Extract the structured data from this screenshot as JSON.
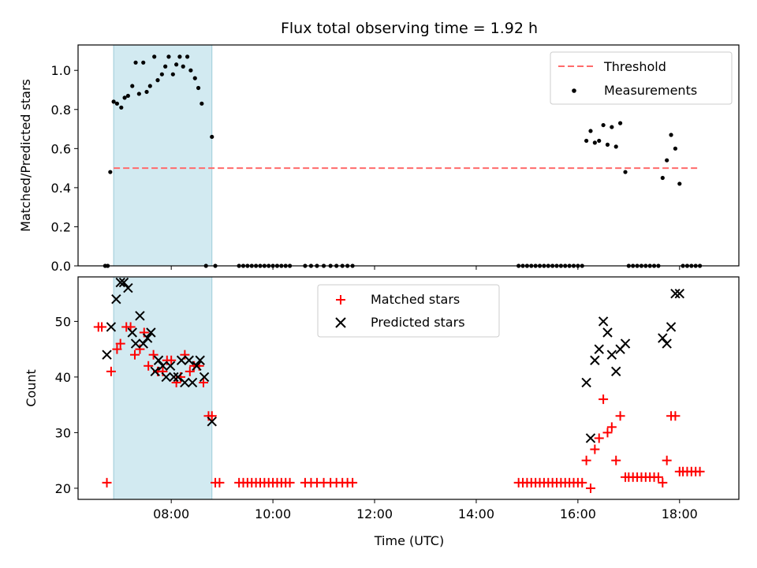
{
  "chart_data": [
    {
      "type": "scatter",
      "title": "Flux total observing time = 1.92 h",
      "ylabel": "Matched/Predicted stars",
      "xlabel": "",
      "ylim": [
        0,
        1.13
      ],
      "xlim": [
        "06:10",
        "19:10"
      ],
      "yticks": [
        0.0,
        0.2,
        0.4,
        0.6,
        0.8,
        1.0
      ],
      "ytick_labels": [
        "0.0",
        "0.2",
        "0.4",
        "0.6",
        "0.8",
        "1.0"
      ],
      "grid": false,
      "legend": "top-right",
      "threshold": {
        "name": "Threshold",
        "value": 0.5,
        "x_range": [
          "06:52",
          "18:22"
        ],
        "color": "#ff6b6b"
      },
      "shaded_region": {
        "x_range": [
          "06:52",
          "08:48"
        ],
        "color": "#add8e6"
      },
      "series": [
        {
          "name": "Measurements",
          "color": "#000000",
          "points": [
            [
              "06:42",
              0.0
            ],
            [
              "06:45",
              0.0
            ],
            [
              "06:48",
              0.48
            ],
            [
              "06:52",
              0.84
            ],
            [
              "06:56",
              0.83
            ],
            [
              "07:01",
              0.81
            ],
            [
              "07:05",
              0.86
            ],
            [
              "07:09",
              0.87
            ],
            [
              "07:14",
              0.92
            ],
            [
              "07:18",
              1.04
            ],
            [
              "07:22",
              0.88
            ],
            [
              "07:27",
              1.04
            ],
            [
              "07:31",
              0.89
            ],
            [
              "07:35",
              0.92
            ],
            [
              "07:40",
              1.07
            ],
            [
              "07:44",
              0.95
            ],
            [
              "07:49",
              0.98
            ],
            [
              "07:53",
              1.02
            ],
            [
              "07:57",
              1.07
            ],
            [
              "08:02",
              0.98
            ],
            [
              "08:06",
              1.03
            ],
            [
              "08:10",
              1.07
            ],
            [
              "08:14",
              1.02
            ],
            [
              "08:19",
              1.07
            ],
            [
              "08:23",
              1.0
            ],
            [
              "08:28",
              0.96
            ],
            [
              "08:32",
              0.91
            ],
            [
              "08:36",
              0.83
            ],
            [
              "08:41",
              0.0
            ],
            [
              "08:48",
              0.66
            ],
            [
              "08:52",
              0.0
            ],
            [
              "09:20",
              0.0
            ],
            [
              "09:25",
              0.0
            ],
            [
              "09:30",
              0.0
            ],
            [
              "09:35",
              0.0
            ],
            [
              "09:40",
              0.0
            ],
            [
              "09:45",
              0.0
            ],
            [
              "09:50",
              0.0
            ],
            [
              "09:55",
              0.0
            ],
            [
              "10:00",
              0.0
            ],
            [
              "10:05",
              0.0
            ],
            [
              "10:10",
              0.0
            ],
            [
              "10:15",
              0.0
            ],
            [
              "10:20",
              0.0
            ],
            [
              "10:38",
              0.0
            ],
            [
              "10:45",
              0.0
            ],
            [
              "10:52",
              0.0
            ],
            [
              "11:00",
              0.0
            ],
            [
              "11:08",
              0.0
            ],
            [
              "11:15",
              0.0
            ],
            [
              "11:22",
              0.0
            ],
            [
              "11:28",
              0.0
            ],
            [
              "11:34",
              0.0
            ],
            [
              "14:50",
              0.0
            ],
            [
              "14:55",
              0.0
            ],
            [
              "15:00",
              0.0
            ],
            [
              "15:05",
              0.0
            ],
            [
              "15:10",
              0.0
            ],
            [
              "15:15",
              0.0
            ],
            [
              "15:20",
              0.0
            ],
            [
              "15:25",
              0.0
            ],
            [
              "15:30",
              0.0
            ],
            [
              "15:35",
              0.0
            ],
            [
              "15:40",
              0.0
            ],
            [
              "15:45",
              0.0
            ],
            [
              "15:50",
              0.0
            ],
            [
              "15:55",
              0.0
            ],
            [
              "16:00",
              0.0
            ],
            [
              "16:05",
              0.0
            ],
            [
              "16:10",
              0.64
            ],
            [
              "16:15",
              0.69
            ],
            [
              "16:20",
              0.63
            ],
            [
              "16:25",
              0.64
            ],
            [
              "16:30",
              0.72
            ],
            [
              "16:35",
              0.62
            ],
            [
              "16:40",
              0.71
            ],
            [
              "16:45",
              0.61
            ],
            [
              "16:50",
              0.73
            ],
            [
              "16:56",
              0.48
            ],
            [
              "17:00",
              0.0
            ],
            [
              "17:05",
              0.0
            ],
            [
              "17:10",
              0.0
            ],
            [
              "17:15",
              0.0
            ],
            [
              "17:20",
              0.0
            ],
            [
              "17:25",
              0.0
            ],
            [
              "17:30",
              0.0
            ],
            [
              "17:35",
              0.0
            ],
            [
              "17:40",
              0.45
            ],
            [
              "17:45",
              0.54
            ],
            [
              "17:50",
              0.67
            ],
            [
              "17:55",
              0.6
            ],
            [
              "18:00",
              0.42
            ],
            [
              "18:04",
              0.0
            ],
            [
              "18:09",
              0.0
            ],
            [
              "18:14",
              0.0
            ],
            [
              "18:19",
              0.0
            ],
            [
              "18:24",
              0.0
            ]
          ]
        }
      ]
    },
    {
      "type": "scatter",
      "title": "",
      "xlabel": "Time (UTC)",
      "ylabel": "Count",
      "ylim": [
        18,
        58
      ],
      "xlim": [
        "06:10",
        "19:10"
      ],
      "yticks": [
        20,
        30,
        40,
        50
      ],
      "ytick_labels": [
        "20",
        "30",
        "40",
        "50"
      ],
      "xticks": [
        "08:00",
        "10:00",
        "12:00",
        "14:00",
        "16:00",
        "18:00"
      ],
      "xtick_labels": [
        "08:00",
        "10:00",
        "12:00",
        "14:00",
        "16:00",
        "18:00"
      ],
      "grid": false,
      "legend": "upper-center",
      "shaded_region": {
        "x_range": [
          "06:52",
          "08:48"
        ],
        "color": "#add8e6"
      },
      "series": [
        {
          "name": "Matched stars",
          "marker": "plus",
          "color": "#ff0000",
          "points": [
            [
              "06:34",
              49
            ],
            [
              "06:38",
              49
            ],
            [
              "06:44",
              21
            ],
            [
              "06:49",
              41
            ],
            [
              "06:56",
              45
            ],
            [
              "07:00",
              46
            ],
            [
              "07:07",
              49
            ],
            [
              "07:12",
              49
            ],
            [
              "07:17",
              44
            ],
            [
              "07:23",
              45
            ],
            [
              "07:28",
              48
            ],
            [
              "07:33",
              42
            ],
            [
              "07:39",
              44
            ],
            [
              "07:44",
              41
            ],
            [
              "07:50",
              41
            ],
            [
              "07:55",
              43
            ],
            [
              "08:00",
              43
            ],
            [
              "08:06",
              39
            ],
            [
              "08:11",
              40
            ],
            [
              "08:16",
              44
            ],
            [
              "08:22",
              41
            ],
            [
              "08:27",
              42
            ],
            [
              "08:33",
              42
            ],
            [
              "08:38",
              39
            ],
            [
              "08:44",
              33
            ],
            [
              "08:48",
              33
            ],
            [
              "08:52",
              21
            ],
            [
              "08:57",
              21
            ],
            [
              "09:20",
              21
            ],
            [
              "09:25",
              21
            ],
            [
              "09:30",
              21
            ],
            [
              "09:35",
              21
            ],
            [
              "09:40",
              21
            ],
            [
              "09:45",
              21
            ],
            [
              "09:50",
              21
            ],
            [
              "09:55",
              21
            ],
            [
              "10:00",
              21
            ],
            [
              "10:05",
              21
            ],
            [
              "10:10",
              21
            ],
            [
              "10:15",
              21
            ],
            [
              "10:20",
              21
            ],
            [
              "10:38",
              21
            ],
            [
              "10:45",
              21
            ],
            [
              "10:52",
              21
            ],
            [
              "11:00",
              21
            ],
            [
              "11:08",
              21
            ],
            [
              "11:15",
              21
            ],
            [
              "11:22",
              21
            ],
            [
              "11:28",
              21
            ],
            [
              "11:34",
              21
            ],
            [
              "14:50",
              21
            ],
            [
              "14:55",
              21
            ],
            [
              "15:00",
              21
            ],
            [
              "15:05",
              21
            ],
            [
              "15:10",
              21
            ],
            [
              "15:15",
              21
            ],
            [
              "15:20",
              21
            ],
            [
              "15:25",
              21
            ],
            [
              "15:30",
              21
            ],
            [
              "15:35",
              21
            ],
            [
              "15:40",
              21
            ],
            [
              "15:45",
              21
            ],
            [
              "15:50",
              21
            ],
            [
              "15:55",
              21
            ],
            [
              "16:00",
              21
            ],
            [
              "16:05",
              21
            ],
            [
              "16:10",
              25
            ],
            [
              "16:15",
              20
            ],
            [
              "16:20",
              27
            ],
            [
              "16:25",
              29
            ],
            [
              "16:30",
              36
            ],
            [
              "16:35",
              30
            ],
            [
              "16:40",
              31
            ],
            [
              "16:45",
              25
            ],
            [
              "16:50",
              33
            ],
            [
              "16:56",
              22
            ],
            [
              "17:00",
              22
            ],
            [
              "17:05",
              22
            ],
            [
              "17:10",
              22
            ],
            [
              "17:15",
              22
            ],
            [
              "17:20",
              22
            ],
            [
              "17:25",
              22
            ],
            [
              "17:30",
              22
            ],
            [
              "17:35",
              22
            ],
            [
              "17:40",
              21
            ],
            [
              "17:45",
              25
            ],
            [
              "17:50",
              33
            ],
            [
              "17:55",
              33
            ],
            [
              "18:00",
              23
            ],
            [
              "18:04",
              23
            ],
            [
              "18:09",
              23
            ],
            [
              "18:14",
              23
            ],
            [
              "18:19",
              23
            ],
            [
              "18:24",
              23
            ]
          ]
        },
        {
          "name": "Predicted stars",
          "marker": "x",
          "color": "#000000",
          "points": [
            [
              "06:44",
              44
            ],
            [
              "06:49",
              49
            ],
            [
              "06:55",
              54
            ],
            [
              "07:00",
              57
            ],
            [
              "07:04",
              57
            ],
            [
              "07:09",
              56
            ],
            [
              "07:14",
              48
            ],
            [
              "07:18",
              46
            ],
            [
              "07:23",
              51
            ],
            [
              "07:27",
              46
            ],
            [
              "07:32",
              47
            ],
            [
              "07:36",
              48
            ],
            [
              "07:41",
              41
            ],
            [
              "07:45",
              43
            ],
            [
              "07:50",
              42
            ],
            [
              "07:54",
              40
            ],
            [
              "07:59",
              42
            ],
            [
              "08:03",
              40
            ],
            [
              "08:08",
              40
            ],
            [
              "08:12",
              43
            ],
            [
              "08:16",
              39
            ],
            [
              "08:21",
              43
            ],
            [
              "08:25",
              39
            ],
            [
              "08:30",
              42
            ],
            [
              "08:34",
              43
            ],
            [
              "08:39",
              40
            ],
            [
              "08:48",
              32
            ],
            [
              "16:10",
              39
            ],
            [
              "16:15",
              29
            ],
            [
              "16:20",
              43
            ],
            [
              "16:25",
              45
            ],
            [
              "16:30",
              50
            ],
            [
              "16:35",
              48
            ],
            [
              "16:40",
              44
            ],
            [
              "16:45",
              41
            ],
            [
              "16:50",
              45
            ],
            [
              "16:56",
              46
            ],
            [
              "17:40",
              47
            ],
            [
              "17:45",
              46
            ],
            [
              "17:50",
              49
            ],
            [
              "17:55",
              55
            ],
            [
              "18:00",
              55
            ]
          ]
        }
      ]
    }
  ]
}
